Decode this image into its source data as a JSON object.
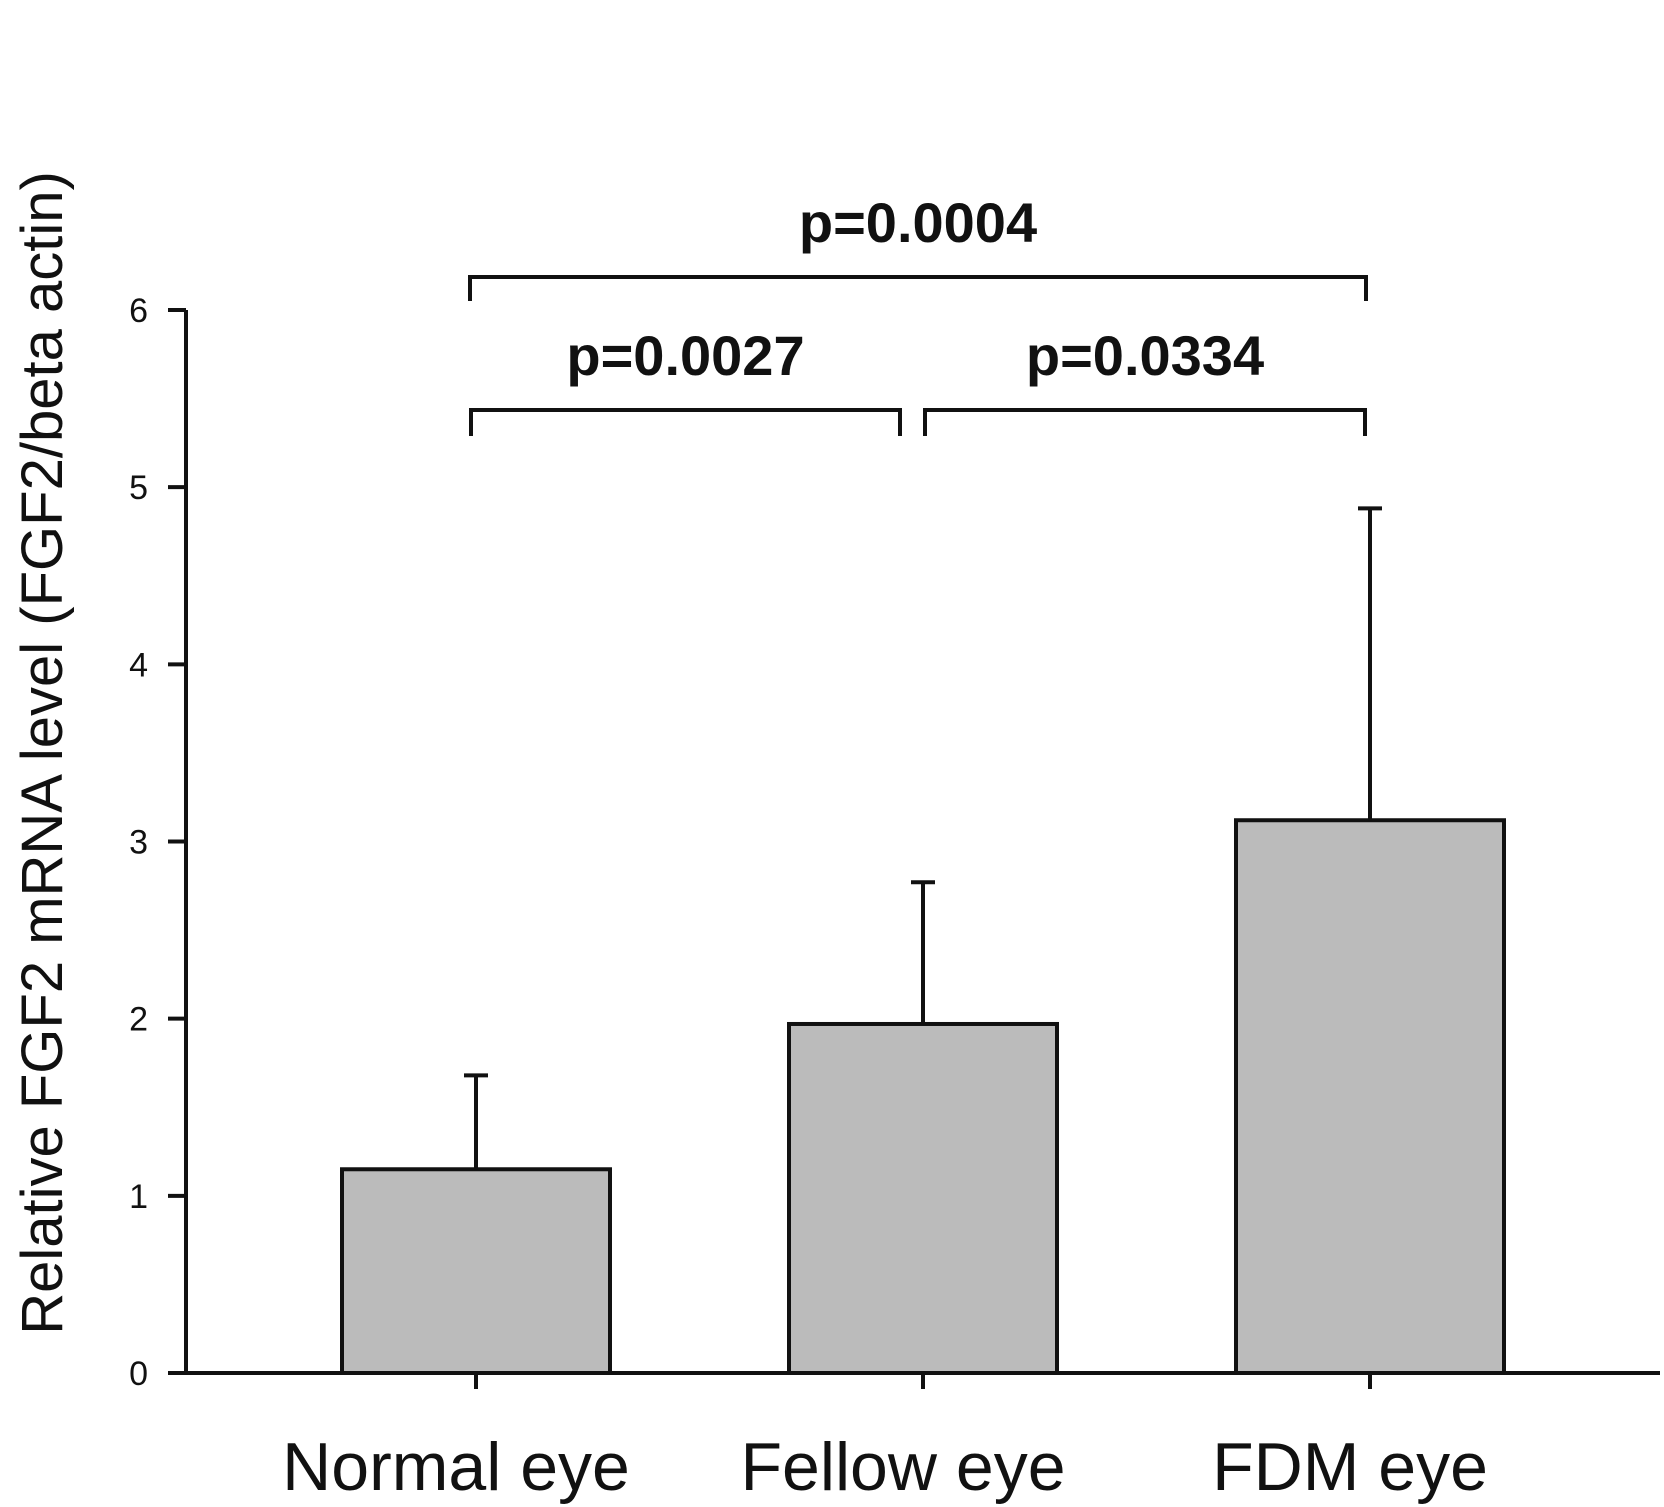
{
  "chart_data": {
    "type": "bar",
    "title": "",
    "xlabel": "",
    "ylabel": "Relative FGF2 mRNA level (FGF2/beta actin)",
    "categories": [
      "Normal eye",
      "Fellow eye",
      "FDM eye"
    ],
    "values": [
      1.15,
      1.97,
      3.12
    ],
    "error_upper": [
      1.68,
      2.77,
      4.88
    ],
    "ylim": [
      0,
      6
    ],
    "yticks": [
      0,
      1,
      2,
      3,
      4,
      5,
      6
    ],
    "grid": false,
    "bar_color": "#bbbbbb",
    "significance": [
      {
        "from": 0,
        "to": 1,
        "label": "p=0.0027",
        "y": 5.45
      },
      {
        "from": 1,
        "to": 2,
        "label": "p=0.0334",
        "y": 5.45
      },
      {
        "from": 0,
        "to": 2,
        "label": "p=0.0004",
        "y": 6.2
      }
    ]
  }
}
